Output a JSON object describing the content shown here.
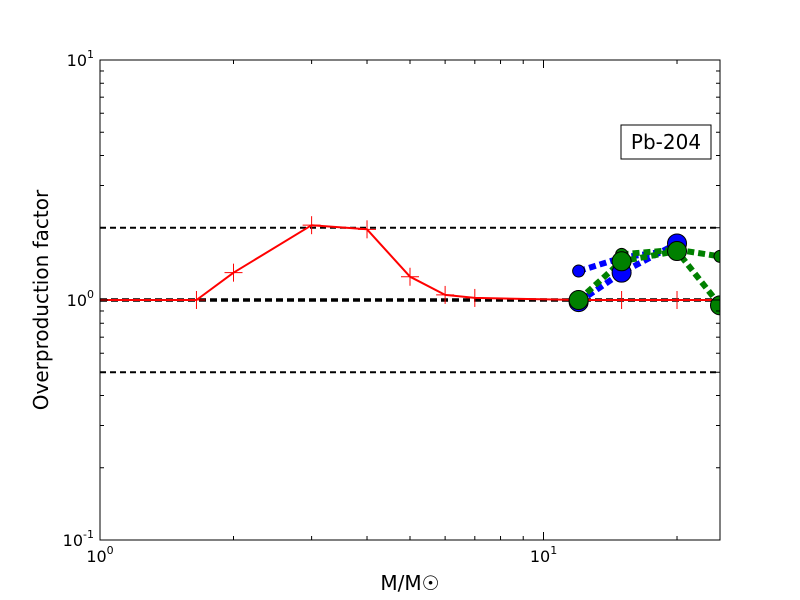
{
  "chart_data": {
    "type": "line",
    "title": "",
    "xlabel": "M/M☉",
    "ylabel": "Overproduction factor",
    "xscale": "log",
    "yscale": "log",
    "xlim": [
      1,
      25
    ],
    "ylim": [
      0.1,
      10
    ],
    "x_ticks": [
      {
        "value": 1,
        "base": "10",
        "exp": "0"
      },
      {
        "value": 10,
        "base": "10",
        "exp": "1"
      }
    ],
    "y_ticks": [
      {
        "value": 0.1,
        "base": "10",
        "exp": "-1"
      },
      {
        "value": 1,
        "base": "10",
        "exp": "0"
      },
      {
        "value": 10,
        "base": "10",
        "exp": "1"
      }
    ],
    "annotation": "Pb-204",
    "annotation_placement": "top-right",
    "grid": false,
    "reference_lines": [
      {
        "y": 2.0,
        "style": "dashed",
        "color": "#000000",
        "weight": "thin"
      },
      {
        "y": 1.0,
        "style": "dashed",
        "color": "#000000",
        "weight": "thick"
      },
      {
        "y": 0.5,
        "style": "dashed",
        "color": "#000000",
        "weight": "thin"
      }
    ],
    "series": [
      {
        "style": "solid",
        "color": "#ff0000",
        "marker": "plus",
        "x": [
          1.0,
          1.65,
          2.0,
          3.0,
          4.0,
          5.0,
          6.0,
          7.0,
          12.0,
          15.0,
          20.0,
          25.0
        ],
        "y": [
          1.0,
          1.0,
          1.3,
          2.05,
          1.97,
          1.25,
          1.05,
          1.02,
          1.0,
          1.0,
          1.0,
          1.0
        ]
      },
      {
        "style": "dotted",
        "color": "#0000ff",
        "marker": "circle-small",
        "x": [
          12.0,
          15.0,
          20.0
        ],
        "y": [
          1.32,
          1.5,
          1.62
        ]
      },
      {
        "style": "dotted",
        "color": "#0000ff",
        "marker": "circle-large",
        "x": [
          12.0,
          15.0,
          20.0
        ],
        "y": [
          0.98,
          1.3,
          1.72
        ]
      },
      {
        "style": "dotted",
        "color": "#008000",
        "marker": "circle-small",
        "x": [
          15.0,
          20.0,
          25.0
        ],
        "y": [
          1.55,
          1.62,
          1.52
        ]
      },
      {
        "style": "dotted",
        "color": "#008000",
        "marker": "circle-large",
        "x": [
          12.0,
          15.0,
          20.0,
          25.0
        ],
        "y": [
          1.0,
          1.45,
          1.6,
          0.95
        ]
      }
    ]
  }
}
